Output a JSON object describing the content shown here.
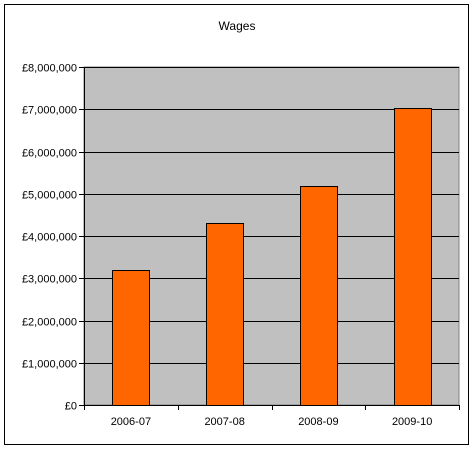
{
  "chart_data": {
    "type": "bar",
    "title": "Wages",
    "xlabel": "",
    "ylabel": "",
    "categories": [
      "2006-07",
      "2007-08",
      "2008-09",
      "2009-10"
    ],
    "values": [
      3200000,
      4300000,
      5180000,
      7030000
    ],
    "ylim": [
      0,
      8000000
    ],
    "yticks": [
      0,
      1000000,
      2000000,
      3000000,
      4000000,
      5000000,
      6000000,
      7000000,
      8000000
    ],
    "ytick_labels": [
      "£0",
      "£1,000,000",
      "£2,000,000",
      "£3,000,000",
      "£4,000,000",
      "£5,000,000",
      "£6,000,000",
      "£7,000,000",
      "£8,000,000"
    ],
    "grid": true,
    "legend": "none",
    "colors": {
      "bar_fill": "#ff6600",
      "bar_stroke": "#000000",
      "plot_background": "#c0c0c0",
      "gridline": "#000000"
    }
  }
}
